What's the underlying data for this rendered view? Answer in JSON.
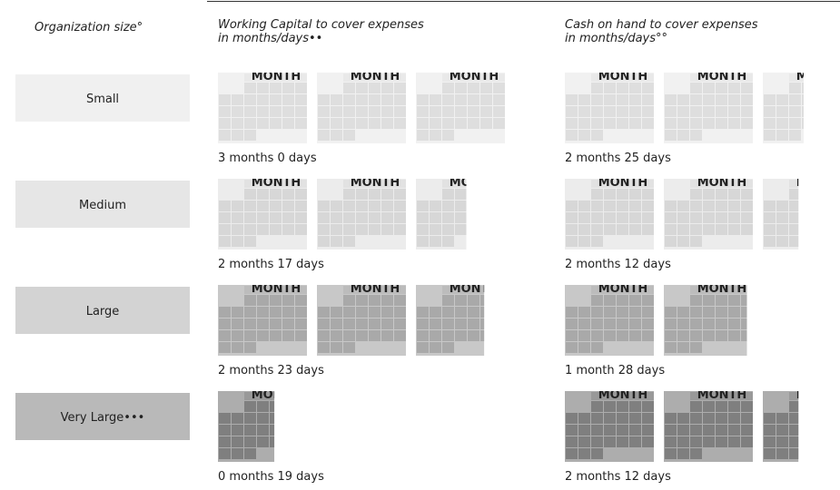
{
  "header": {
    "org_size": "Organization size°",
    "working_capital": [
      "Working Capital to cover expenses",
      "in months/days••"
    ],
    "cash": [
      "Cash on hand to cover expenses",
      "in months/days°°"
    ]
  },
  "calendar_label": "MONTH",
  "rows": [
    {
      "label": "Small",
      "colors": {
        "box": "#f0f0f0",
        "text": "#222222",
        "bg": "#f1f1f1",
        "cell": "#dedede",
        "head": "#e9e9e9",
        "mtext": "#c8c8c8"
      },
      "working_capital": {
        "months": 3,
        "days": 0,
        "text": "3 months 0 days"
      },
      "cash": {
        "months": 2,
        "days": 25,
        "text": "2 months 25 days"
      }
    },
    {
      "label": "Medium",
      "colors": {
        "box": "#e6e6e6",
        "text": "#222222",
        "bg": "#ececec",
        "cell": "#d7d7d7",
        "head": "#e2e2e2",
        "mtext": "#bdbdbd"
      },
      "working_capital": {
        "months": 2,
        "days": 17,
        "text": "2 months 17 days"
      },
      "cash": {
        "months": 2,
        "days": 12,
        "text": "2 months 12 days"
      }
    },
    {
      "label": "Large",
      "colors": {
        "box": "#d3d3d3",
        "text": "#ffffff",
        "bg": "#c8c8c8",
        "cell": "#a9a9a9",
        "head": "#bcbcbc",
        "mtext": "#e6e6e6"
      },
      "working_capital": {
        "months": 2,
        "days": 23,
        "text": "2 months 23 days"
      },
      "cash": {
        "months": 1,
        "days": 28,
        "text": "1 month 28 days"
      }
    },
    {
      "label": "Very Large•••",
      "colors": {
        "box": "#b9b9b9",
        "text": "#ffffff",
        "bg": "#adadad",
        "cell": "#7f7f7f",
        "head": "#999999",
        "mtext": "#d8d8d8"
      },
      "working_capital": {
        "months": 0,
        "days": 19,
        "text": "0 months 19 days"
      },
      "cash": {
        "months": 2,
        "days": 12,
        "text": "2 months 12 days"
      }
    }
  ]
}
